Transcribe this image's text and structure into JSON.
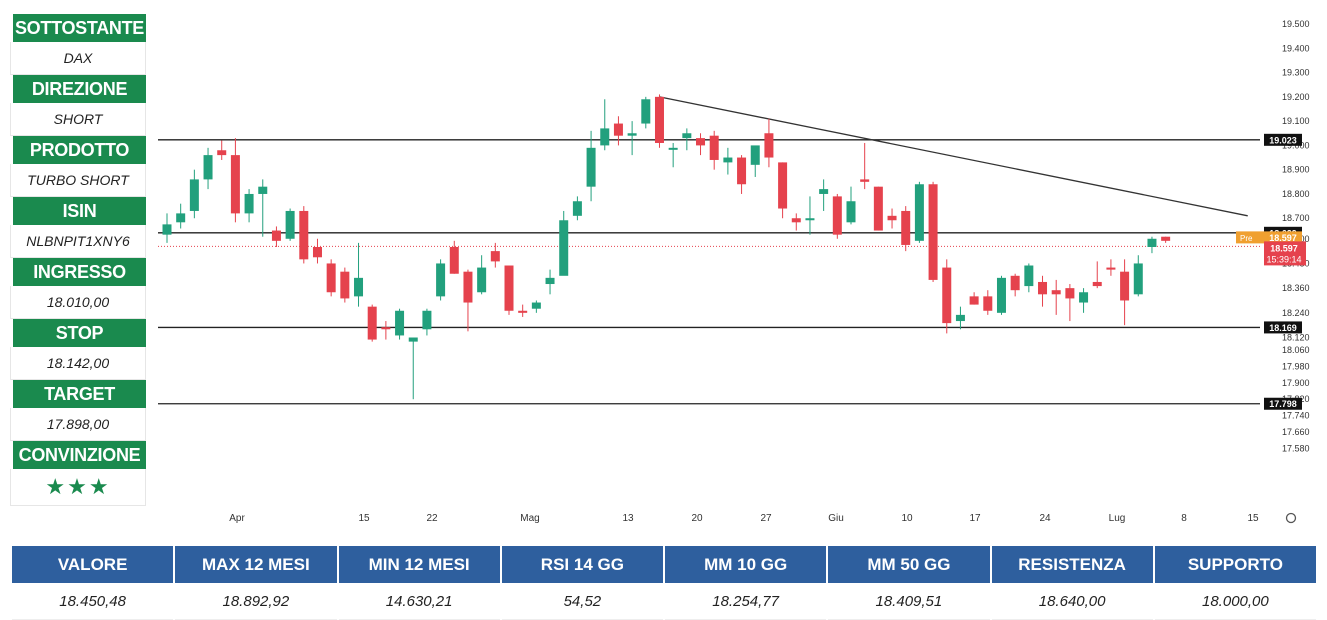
{
  "info_panel": [
    {
      "label": "SOTTOSTANTE",
      "value": "DAX"
    },
    {
      "label": "DIREZIONE",
      "value": "SHORT"
    },
    {
      "label": "PRODOTTO",
      "value": "TURBO SHORT"
    },
    {
      "label": "ISIN",
      "value": "NLBNPIT1XNY6"
    },
    {
      "label": "INGRESSO",
      "value": "18.010,00"
    },
    {
      "label": "STOP",
      "value": "18.142,00"
    },
    {
      "label": "TARGET",
      "value": "17.898,00"
    },
    {
      "label": "CONVINZIONE",
      "value": "★★★"
    }
  ],
  "stats": [
    {
      "label": "VALORE",
      "value": "18.450,48"
    },
    {
      "label": "MAX 12 MESI",
      "value": "18.892,92"
    },
    {
      "label": "MIN 12 MESI",
      "value": "14.630,21"
    },
    {
      "label": "RSI 14 GG",
      "value": "54,52"
    },
    {
      "label": "MM 10 GG",
      "value": "18.254,77"
    },
    {
      "label": "MM 50 GG",
      "value": "18.409,51"
    },
    {
      "label": "RESISTENZA",
      "value": "18.640,00"
    },
    {
      "label": "SUPPORTO",
      "value": "18.000,00"
    }
  ],
  "colors": {
    "up": "#22a07d",
    "down": "#e5424d",
    "header_green": "#1a8a4e",
    "header_blue": "#2e5f9e",
    "pre": "#f0a030"
  },
  "chart_data": {
    "type": "candlestick",
    "y_ticks": [
      "19.500",
      "19.400",
      "19.300",
      "19.200",
      "19.100",
      "19.000",
      "18.900",
      "18.800",
      "18.700",
      "18.600",
      "18.480",
      "18.360",
      "18.240",
      "18.120",
      "18.060",
      "17.980",
      "17.900",
      "17.820",
      "17.740",
      "17.660",
      "17.580"
    ],
    "x_ticks": [
      "Apr",
      "15",
      "22",
      "Mag",
      "13",
      "20",
      "27",
      "Giu",
      "10",
      "17",
      "24",
      "Lug",
      "8",
      "15"
    ],
    "horizontal_levels": [
      {
        "label": "19.023",
        "value": 19023
      },
      {
        "label": "18.629",
        "value": 18629
      },
      {
        "label": "18.169",
        "value": 18169
      },
      {
        "label": "17.798",
        "value": 17798
      }
    ],
    "price_tags": [
      {
        "label": "Pre",
        "value": "18.597",
        "kind": "pre"
      },
      {
        "label": "18.597",
        "countdown": "15:39:14",
        "kind": "last"
      }
    ],
    "last_price": 18597,
    "trendline": {
      "start": {
        "index": 36,
        "value": 19200
      },
      "end": {
        "index": 79,
        "value": 18710
      }
    },
    "candles": [
      {
        "o": 18620,
        "h": 18720,
        "l": 18580,
        "c": 18670
      },
      {
        "o": 18680,
        "h": 18760,
        "l": 18650,
        "c": 18720
      },
      {
        "o": 18730,
        "h": 18900,
        "l": 18700,
        "c": 18860
      },
      {
        "o": 18860,
        "h": 18990,
        "l": 18820,
        "c": 18960
      },
      {
        "o": 18980,
        "h": 19020,
        "l": 18940,
        "c": 18960
      },
      {
        "o": 18960,
        "h": 19030,
        "l": 18680,
        "c": 18720
      },
      {
        "o": 18720,
        "h": 18820,
        "l": 18680,
        "c": 18800
      },
      {
        "o": 18800,
        "h": 18860,
        "l": 18610,
        "c": 18830
      },
      {
        "o": 18640,
        "h": 18660,
        "l": 18560,
        "c": 18590
      },
      {
        "o": 18600,
        "h": 18740,
        "l": 18590,
        "c": 18730
      },
      {
        "o": 18730,
        "h": 18750,
        "l": 18480,
        "c": 18500
      },
      {
        "o": 18560,
        "h": 18600,
        "l": 18480,
        "c": 18510
      },
      {
        "o": 18480,
        "h": 18500,
        "l": 18320,
        "c": 18340
      },
      {
        "o": 18440,
        "h": 18460,
        "l": 18290,
        "c": 18310
      },
      {
        "o": 18320,
        "h": 18580,
        "l": 18270,
        "c": 18410
      },
      {
        "o": 18270,
        "h": 18280,
        "l": 18100,
        "c": 18110
      },
      {
        "o": 18170,
        "h": 18200,
        "l": 18110,
        "c": 18160
      },
      {
        "o": 18130,
        "h": 18260,
        "l": 18110,
        "c": 18250
      },
      {
        "o": 18100,
        "h": 18120,
        "l": 17820,
        "c": 18120
      },
      {
        "o": 18160,
        "h": 18260,
        "l": 18130,
        "c": 18250
      },
      {
        "o": 18320,
        "h": 18500,
        "l": 18300,
        "c": 18480
      },
      {
        "o": 18560,
        "h": 18590,
        "l": 18430,
        "c": 18430
      },
      {
        "o": 18440,
        "h": 18450,
        "l": 18150,
        "c": 18290
      },
      {
        "o": 18340,
        "h": 18520,
        "l": 18330,
        "c": 18460
      },
      {
        "o": 18540,
        "h": 18580,
        "l": 18460,
        "c": 18490
      },
      {
        "o": 18470,
        "h": 18470,
        "l": 18230,
        "c": 18250
      },
      {
        "o": 18250,
        "h": 18280,
        "l": 18220,
        "c": 18240
      },
      {
        "o": 18260,
        "h": 18300,
        "l": 18240,
        "c": 18290
      },
      {
        "o": 18380,
        "h": 18450,
        "l": 18330,
        "c": 18410
      },
      {
        "o": 18420,
        "h": 18730,
        "l": 18430,
        "c": 18690
      },
      {
        "o": 18710,
        "h": 18790,
        "l": 18690,
        "c": 18770
      },
      {
        "o": 18830,
        "h": 19060,
        "l": 18770,
        "c": 18990
      },
      {
        "o": 19000,
        "h": 19190,
        "l": 18980,
        "c": 19070
      },
      {
        "o": 19090,
        "h": 19120,
        "l": 19000,
        "c": 19040
      },
      {
        "o": 19040,
        "h": 19100,
        "l": 18960,
        "c": 19050
      },
      {
        "o": 19090,
        "h": 19200,
        "l": 19070,
        "c": 19190
      },
      {
        "o": 19200,
        "h": 19210,
        "l": 18990,
        "c": 19010
      },
      {
        "o": 18990,
        "h": 19010,
        "l": 18910,
        "c": 18990
      },
      {
        "o": 19030,
        "h": 19070,
        "l": 18980,
        "c": 19050
      },
      {
        "o": 19030,
        "h": 19050,
        "l": 18960,
        "c": 19000
      },
      {
        "o": 19040,
        "h": 19060,
        "l": 18900,
        "c": 18940
      },
      {
        "o": 18930,
        "h": 18990,
        "l": 18880,
        "c": 18950
      },
      {
        "o": 18950,
        "h": 18960,
        "l": 18800,
        "c": 18840
      },
      {
        "o": 18920,
        "h": 18990,
        "l": 18870,
        "c": 19000
      },
      {
        "o": 19050,
        "h": 19110,
        "l": 18910,
        "c": 18950
      },
      {
        "o": 18930,
        "h": 18930,
        "l": 18700,
        "c": 18740
      },
      {
        "o": 18700,
        "h": 18720,
        "l": 18640,
        "c": 18680
      },
      {
        "o": 18690,
        "h": 18790,
        "l": 18620,
        "c": 18700
      },
      {
        "o": 18800,
        "h": 18860,
        "l": 18730,
        "c": 18820
      },
      {
        "o": 18790,
        "h": 18800,
        "l": 18600,
        "c": 18620
      },
      {
        "o": 18680,
        "h": 18830,
        "l": 18670,
        "c": 18770
      },
      {
        "o": 18860,
        "h": 19010,
        "l": 18820,
        "c": 18850
      },
      {
        "o": 18830,
        "h": 18830,
        "l": 18640,
        "c": 18640
      },
      {
        "o": 18710,
        "h": 18740,
        "l": 18650,
        "c": 18690
      },
      {
        "o": 18730,
        "h": 18750,
        "l": 18540,
        "c": 18570
      },
      {
        "o": 18590,
        "h": 18850,
        "l": 18580,
        "c": 18840
      },
      {
        "o": 18840,
        "h": 18850,
        "l": 18390,
        "c": 18400
      },
      {
        "o": 18460,
        "h": 18500,
        "l": 18140,
        "c": 18190
      },
      {
        "o": 18200,
        "h": 18270,
        "l": 18160,
        "c": 18230
      },
      {
        "o": 18320,
        "h": 18340,
        "l": 18280,
        "c": 18280
      },
      {
        "o": 18320,
        "h": 18350,
        "l": 18230,
        "c": 18250
      },
      {
        "o": 18240,
        "h": 18420,
        "l": 18230,
        "c": 18410
      },
      {
        "o": 18420,
        "h": 18430,
        "l": 18320,
        "c": 18350
      },
      {
        "o": 18370,
        "h": 18480,
        "l": 18340,
        "c": 18470
      },
      {
        "o": 18390,
        "h": 18420,
        "l": 18270,
        "c": 18330
      },
      {
        "o": 18350,
        "h": 18400,
        "l": 18230,
        "c": 18330
      },
      {
        "o": 18360,
        "h": 18380,
        "l": 18200,
        "c": 18310
      },
      {
        "o": 18290,
        "h": 18360,
        "l": 18240,
        "c": 18340
      },
      {
        "o": 18390,
        "h": 18490,
        "l": 18360,
        "c": 18370
      },
      {
        "o": 18460,
        "h": 18500,
        "l": 18420,
        "c": 18450
      },
      {
        "o": 18440,
        "h": 18500,
        "l": 18180,
        "c": 18300
      },
      {
        "o": 18330,
        "h": 18520,
        "l": 18320,
        "c": 18480
      },
      {
        "o": 18560,
        "h": 18610,
        "l": 18530,
        "c": 18600
      },
      {
        "o": 18610,
        "h": 18610,
        "l": 18580,
        "c": 18590
      }
    ]
  }
}
